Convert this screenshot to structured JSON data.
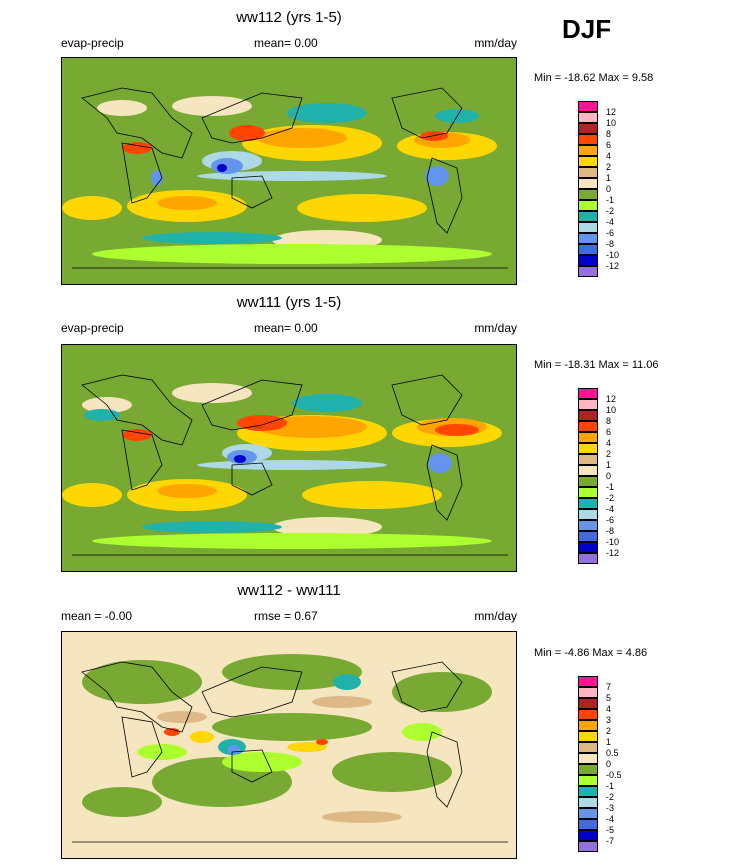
{
  "season": "DJF",
  "panels": [
    {
      "title": "ww112 (yrs 1-5)",
      "left_label": "evap-precip",
      "center_label": "mean=  0.00",
      "right_label": "mm/day",
      "minmax": "Min = -18.62 Max =   9.58",
      "legend_levels": [
        "12",
        "10",
        "8",
        "6",
        "4",
        "2",
        "1",
        "0",
        "-1",
        "-2",
        "-4",
        "-6",
        "-8",
        "-10",
        "-12"
      ]
    },
    {
      "title": "ww111 (yrs 1-5)",
      "left_label": "evap-precip",
      "center_label": "mean=  0.00",
      "right_label": "mm/day",
      "minmax": "Min = -18.31 Max =  11.06",
      "legend_levels": [
        "12",
        "10",
        "8",
        "6",
        "4",
        "2",
        "1",
        "0",
        "-1",
        "-2",
        "-4",
        "-6",
        "-8",
        "-10",
        "-12"
      ]
    },
    {
      "title": "ww112 - ww111",
      "left_label": "mean =  -0.00",
      "center_label": "rmse =   0.67",
      "right_label": "mm/day",
      "minmax": "Min =  -4.86 Max =   4.86",
      "legend_levels": [
        "7",
        "5",
        "4",
        "3",
        "2",
        "1",
        "0.5",
        "0",
        "-0.5",
        "-1",
        "-2",
        "-3",
        "-4",
        "-5",
        "-7"
      ]
    }
  ],
  "legend_colors": [
    "#ff1493",
    "#ffb6c1",
    "#b22222",
    "#ff4500",
    "#ffa500",
    "#ffd700",
    "#deb887",
    "#f5e6c0",
    "#78a933",
    "#adff2f",
    "#20b2aa",
    "#add8e6",
    "#6495ed",
    "#4169e1",
    "#0000cd",
    "#9370db"
  ]
}
